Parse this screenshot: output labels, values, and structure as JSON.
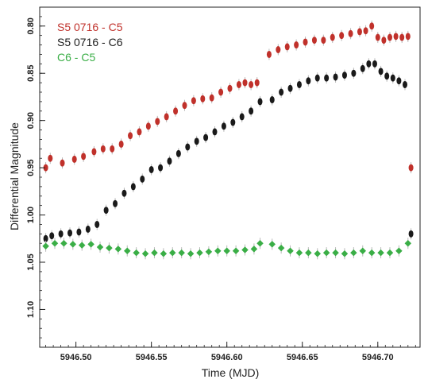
{
  "chart_data": {
    "type": "scatter",
    "xlabel": "Time (MJD)",
    "ylabel": "Differential Magnitude",
    "xlim": [
      5946.476,
      5946.728
    ],
    "ylim": [
      0.78,
      1.14
    ],
    "y_inverted": true,
    "x_ticks": [
      5946.5,
      5946.55,
      5946.6,
      5946.65,
      5946.7
    ],
    "x_tick_labels": [
      "5946.50",
      "5946.55",
      "5946.60",
      "5946.65",
      "5946.70"
    ],
    "y_ticks": [
      0.8,
      0.85,
      0.9,
      0.95,
      1.0,
      1.05,
      1.1
    ],
    "y_tick_labels": [
      "0.80",
      "0.85",
      "0.90",
      "0.95",
      "1.00",
      "1.05",
      "1.10"
    ],
    "grid": false,
    "legend_position": "top-left",
    "series": [
      {
        "name": "S5 0716 - C5",
        "color": "#c0312b",
        "x": [
          5946.48,
          5946.483,
          5946.491,
          5946.499,
          5946.505,
          5946.512,
          5946.518,
          5946.524,
          5946.53,
          5946.536,
          5946.542,
          5946.548,
          5946.554,
          5946.56,
          5946.566,
          5946.572,
          5946.578,
          5946.584,
          5946.59,
          5946.596,
          5946.602,
          5946.608,
          5946.612,
          5946.616,
          5946.62,
          5946.628,
          5946.634,
          5946.64,
          5946.646,
          5946.652,
          5946.658,
          5946.664,
          5946.67,
          5946.676,
          5946.682,
          5946.688,
          5946.692,
          5946.696,
          5946.7,
          5946.704,
          5946.708,
          5946.712,
          5946.716,
          5946.72,
          5946.722
        ],
        "y": [
          0.95,
          0.94,
          0.945,
          0.941,
          0.938,
          0.933,
          0.93,
          0.93,
          0.925,
          0.916,
          0.912,
          0.906,
          0.901,
          0.896,
          0.89,
          0.884,
          0.879,
          0.877,
          0.876,
          0.87,
          0.866,
          0.862,
          0.86,
          0.862,
          0.86,
          0.83,
          0.825,
          0.822,
          0.82,
          0.817,
          0.815,
          0.815,
          0.812,
          0.81,
          0.808,
          0.806,
          0.805,
          0.8,
          0.812,
          0.815,
          0.812,
          0.811,
          0.812,
          0.811,
          0.95
        ]
      },
      {
        "name": "S5 0716 - C6",
        "color": "#1a1a1a",
        "x": [
          5946.48,
          5946.484,
          5946.49,
          5946.496,
          5946.502,
          5946.508,
          5946.514,
          5946.52,
          5946.526,
          5946.532,
          5946.538,
          5946.544,
          5946.55,
          5946.556,
          5946.562,
          5946.568,
          5946.574,
          5946.58,
          5946.586,
          5946.592,
          5946.598,
          5946.604,
          5946.61,
          5946.616,
          5946.622,
          5946.63,
          5946.636,
          5946.642,
          5946.648,
          5946.654,
          5946.66,
          5946.666,
          5946.672,
          5946.678,
          5946.684,
          5946.69,
          5946.694,
          5946.698,
          5946.702,
          5946.706,
          5946.71,
          5946.714,
          5946.718,
          5946.722
        ],
        "y": [
          1.025,
          1.022,
          1.02,
          1.019,
          1.018,
          1.015,
          1.01,
          0.995,
          0.988,
          0.977,
          0.97,
          0.962,
          0.952,
          0.95,
          0.943,
          0.935,
          0.928,
          0.922,
          0.918,
          0.912,
          0.906,
          0.902,
          0.896,
          0.89,
          0.88,
          0.878,
          0.87,
          0.866,
          0.862,
          0.858,
          0.855,
          0.855,
          0.854,
          0.852,
          0.85,
          0.845,
          0.84,
          0.84,
          0.848,
          0.853,
          0.855,
          0.858,
          0.862,
          1.02
        ]
      },
      {
        "name": "C6 - C5",
        "color": "#3aae46",
        "x": [
          5946.48,
          5946.486,
          5946.492,
          5946.498,
          5946.504,
          5946.51,
          5946.516,
          5946.522,
          5946.528,
          5946.534,
          5946.54,
          5946.546,
          5946.552,
          5946.558,
          5946.564,
          5946.57,
          5946.576,
          5946.582,
          5946.588,
          5946.594,
          5946.6,
          5946.606,
          5946.612,
          5946.618,
          5946.622,
          5946.63,
          5946.636,
          5946.642,
          5946.648,
          5946.654,
          5946.66,
          5946.666,
          5946.672,
          5946.678,
          5946.684,
          5946.69,
          5946.696,
          5946.702,
          5946.708,
          5946.714,
          5946.72
        ],
        "y": [
          1.033,
          1.03,
          1.03,
          1.031,
          1.032,
          1.031,
          1.034,
          1.035,
          1.036,
          1.038,
          1.04,
          1.041,
          1.04,
          1.041,
          1.04,
          1.04,
          1.041,
          1.04,
          1.039,
          1.038,
          1.038,
          1.038,
          1.037,
          1.036,
          1.03,
          1.031,
          1.035,
          1.038,
          1.04,
          1.04,
          1.041,
          1.04,
          1.04,
          1.041,
          1.04,
          1.038,
          1.04,
          1.04,
          1.04,
          1.038,
          1.03
        ]
      }
    ]
  }
}
